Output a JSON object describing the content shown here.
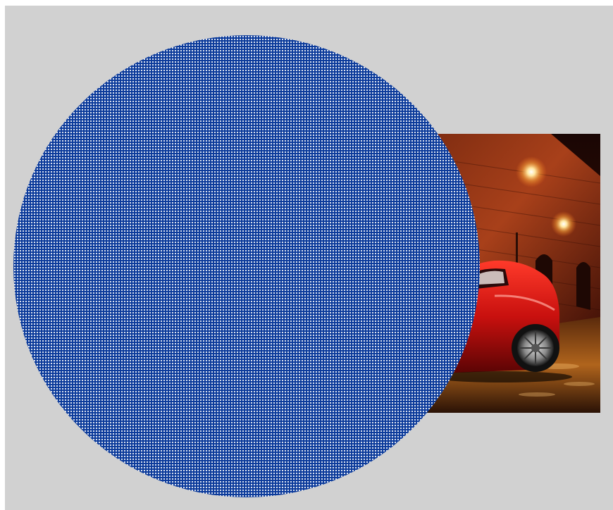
{
  "scene": {
    "background_color": "#d1d1d1",
    "circle_fill_color": "#0b3a9a",
    "circle_dot_color": "#ffffff",
    "photo_subject": "red-car-night-street-photo"
  }
}
